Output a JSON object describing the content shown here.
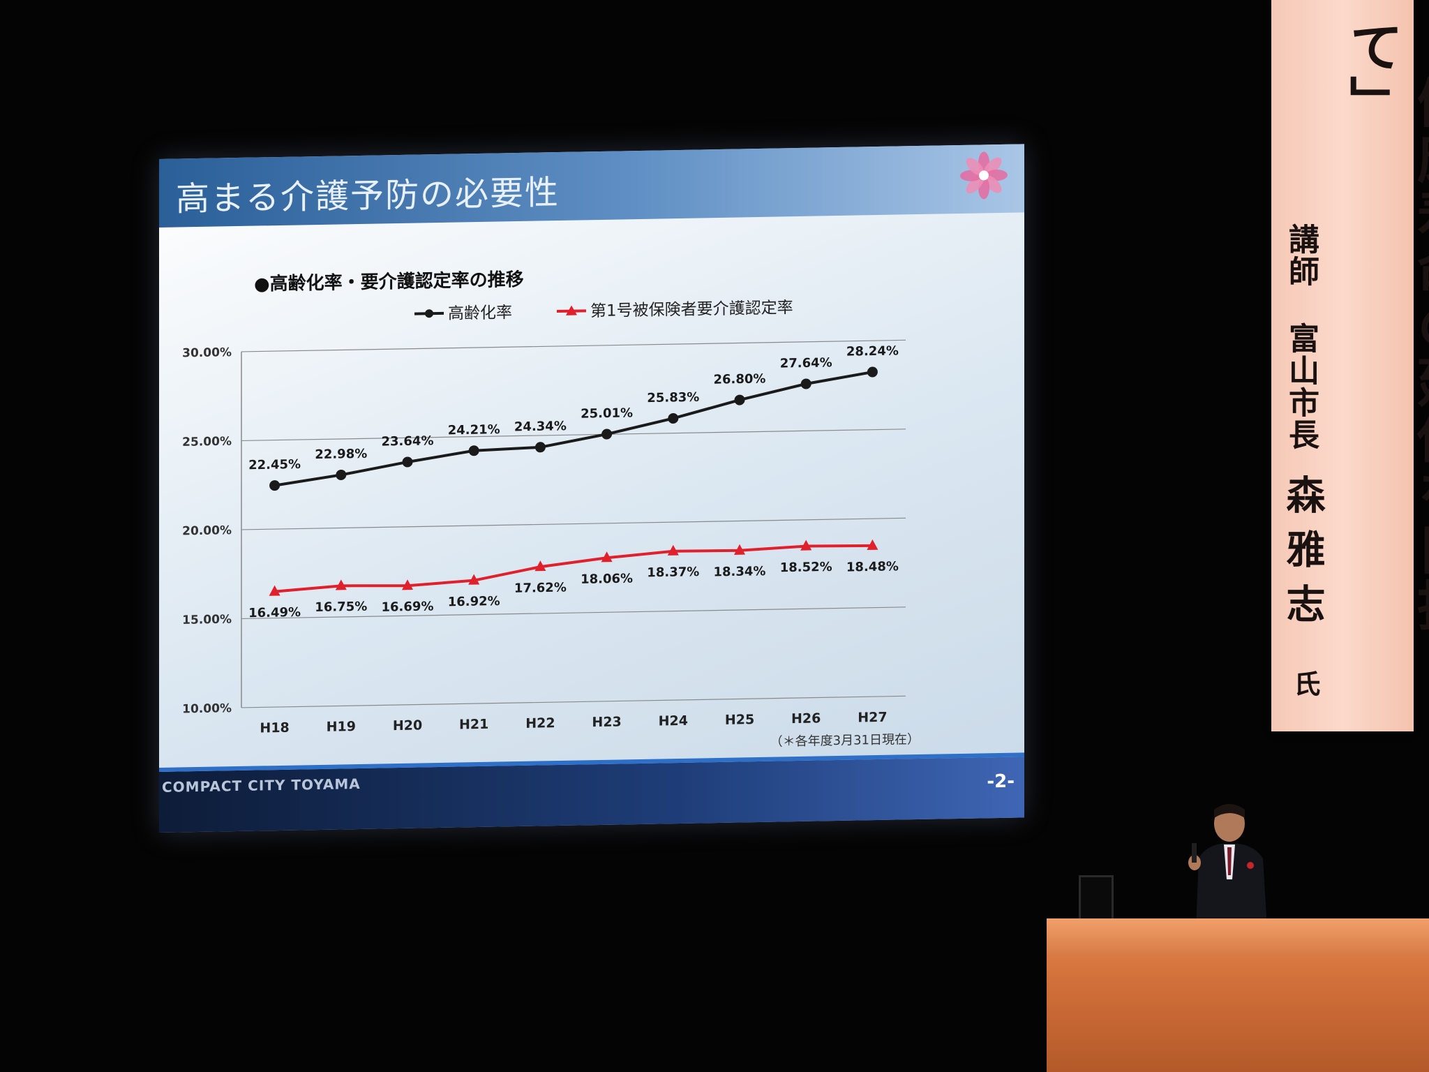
{
  "slide": {
    "title": "高まる介護予防の必要性",
    "footer_brand": "COMPACT CITY TOYAMA",
    "page_number": "-2-",
    "note": "（＊各年度3月31日現在）"
  },
  "banner": {
    "title": "「健康寿命の延伸を目指して」",
    "role": "講師",
    "affiliation": "富山市長",
    "name": "森雅志",
    "honorific": "氏"
  },
  "chart_data": {
    "type": "line",
    "title": "●高齢化率・要介護認定率の推移",
    "categories": [
      "H18",
      "H19",
      "H20",
      "H21",
      "H22",
      "H23",
      "H24",
      "H25",
      "H26",
      "H27"
    ],
    "ylim": [
      10,
      30
    ],
    "yticks": [
      "10.00%",
      "15.00%",
      "20.00%",
      "25.00%",
      "30.00%"
    ],
    "ytick_values": [
      10,
      15,
      20,
      25,
      30
    ],
    "grid": true,
    "legend_position": "top",
    "series": [
      {
        "name": "高齢化率",
        "color": "#1a1a1a",
        "marker": "circle",
        "values": [
          22.45,
          22.98,
          23.64,
          24.21,
          24.34,
          25.01,
          25.83,
          26.8,
          27.64,
          28.24
        ],
        "labels": [
          "22.45%",
          "22.98%",
          "23.64%",
          "24.21%",
          "24.34%",
          "25.01%",
          "25.83%",
          "26.80%",
          "27.64%",
          "28.24%"
        ]
      },
      {
        "name": "第1号被保険者要介護認定率",
        "color": "#e0202a",
        "marker": "triangle",
        "values": [
          16.49,
          16.75,
          16.69,
          16.92,
          17.62,
          18.06,
          18.37,
          18.34,
          18.52,
          18.48
        ],
        "labels": [
          "16.49%",
          "16.75%",
          "16.69%",
          "16.92%",
          "17.62%",
          "18.06%",
          "18.37%",
          "18.34%",
          "18.52%",
          "18.48%"
        ]
      }
    ]
  }
}
